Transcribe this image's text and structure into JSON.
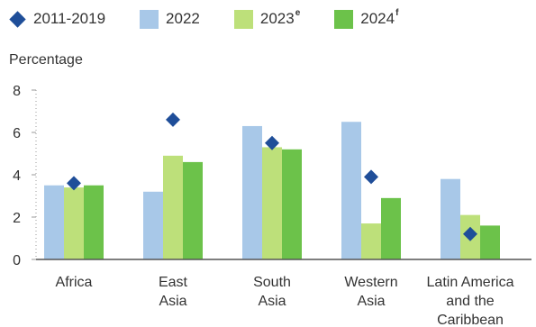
{
  "legend": [
    {
      "label": "2011-2019",
      "sup": "",
      "kind": "diamond",
      "color": "#1f4e99"
    },
    {
      "label": "2022",
      "sup": "",
      "kind": "bar",
      "color": "#a8c8e8"
    },
    {
      "label": "2023",
      "sup": "e",
      "kind": "bar",
      "color": "#bde07a"
    },
    {
      "label": "2024",
      "sup": "f",
      "kind": "bar",
      "color": "#6cc24a"
    }
  ],
  "chart_data": {
    "type": "bar",
    "ylabel": "Percentage",
    "ylim": [
      0,
      8
    ],
    "yticks": [
      "0",
      "2",
      "4",
      "6",
      "8"
    ],
    "grid": false,
    "legend_position": "top",
    "categories": [
      [
        "Africa"
      ],
      [
        "East",
        "Asia"
      ],
      [
        "South",
        "Asia"
      ],
      [
        "Western",
        "Asia"
      ],
      [
        "Latin America",
        "and the",
        "Caribbean"
      ]
    ],
    "series": [
      {
        "name": "2022",
        "type": "bar",
        "color": "#a8c8e8",
        "values": [
          3.5,
          3.2,
          6.3,
          6.5,
          3.8
        ]
      },
      {
        "name": "2023e",
        "type": "bar",
        "color": "#bde07a",
        "values": [
          3.4,
          4.9,
          5.3,
          1.7,
          2.1
        ]
      },
      {
        "name": "2024f",
        "type": "bar",
        "color": "#6cc24a",
        "values": [
          3.5,
          4.6,
          5.2,
          2.9,
          1.6
        ]
      },
      {
        "name": "2011-2019",
        "type": "marker",
        "color": "#1f4e99",
        "values": [
          3.6,
          6.6,
          5.5,
          3.9,
          1.2
        ]
      }
    ]
  }
}
